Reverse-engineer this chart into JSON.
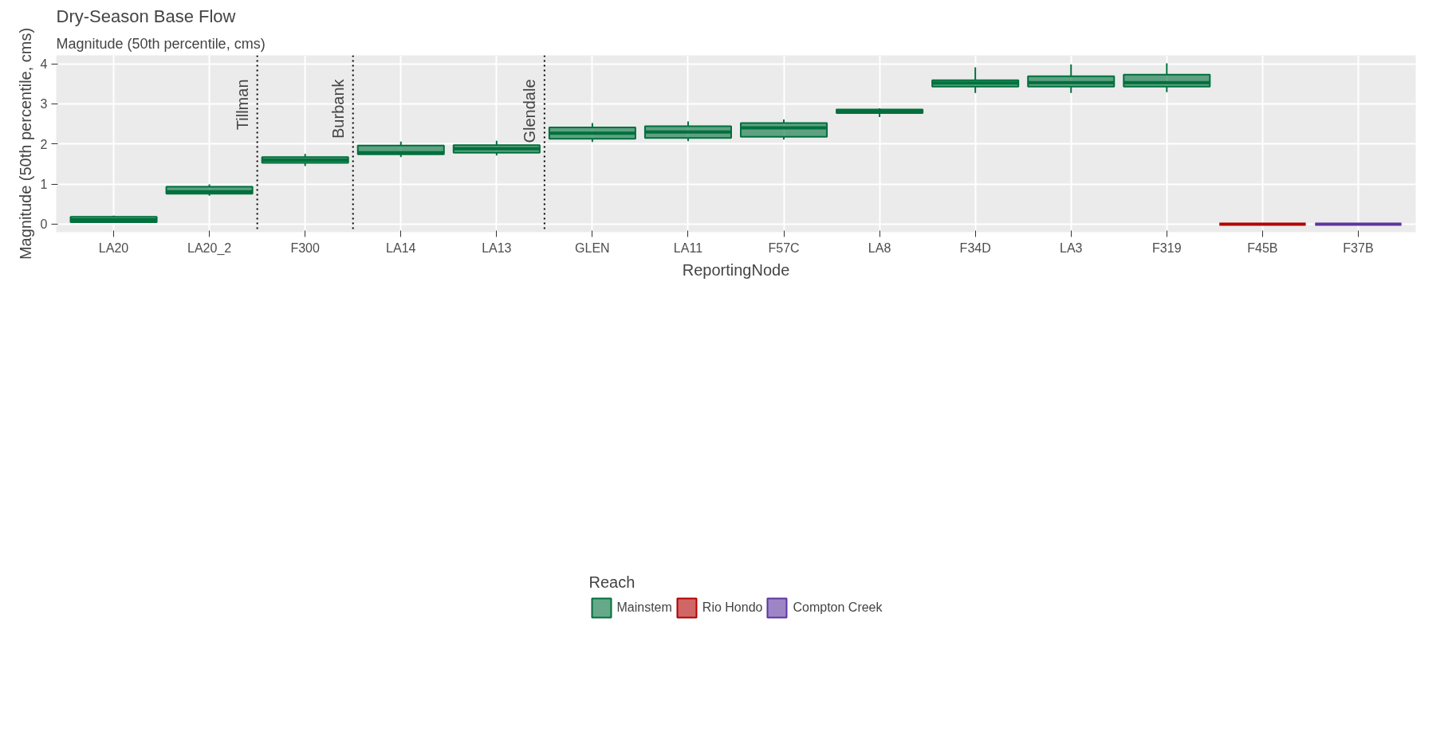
{
  "chart_data": {
    "type": "box",
    "title": "Dry-Season Base Flow",
    "subtitle": "Magnitude (50th percentile, cms)",
    "xlabel": "ReportingNode",
    "ylabel": "Magnitude (50th percentile, cms)",
    "legend_title": "Reach",
    "categories": [
      "LA20",
      "LA20_2",
      "F300",
      "LA14",
      "LA13",
      "GLEN",
      "LA11",
      "F57C",
      "LA8",
      "F34D",
      "LA3",
      "F319",
      "F45B",
      "F37B"
    ],
    "series": [
      {
        "name": "Mainstem",
        "color": "#00703c",
        "boxes": [
          {
            "low": 0.03,
            "q1": 0.05,
            "median": 0.11,
            "q3": 0.18,
            "high": 0.21
          },
          {
            "low": 0.71,
            "q1": 0.76,
            "median": 0.81,
            "q3": 0.93,
            "high": 0.99
          },
          {
            "low": 1.45,
            "q1": 1.53,
            "median": 1.6,
            "q3": 1.67,
            "high": 1.75
          },
          {
            "low": 1.67,
            "q1": 1.74,
            "median": 1.78,
            "q3": 1.96,
            "high": 2.06
          },
          {
            "low": 1.71,
            "q1": 1.78,
            "median": 1.88,
            "q3": 1.97,
            "high": 2.08
          },
          {
            "low": 2.05,
            "q1": 2.13,
            "median": 2.27,
            "q3": 2.41,
            "high": 2.52
          },
          {
            "low": 2.07,
            "q1": 2.15,
            "median": 2.3,
            "q3": 2.44,
            "high": 2.56
          },
          {
            "low": 2.11,
            "q1": 2.18,
            "median": 2.4,
            "q3": 2.52,
            "high": 2.61
          },
          {
            "low": 2.67,
            "q1": 2.77,
            "median": 2.82,
            "q3": 2.86,
            "high": 2.89
          },
          {
            "low": 3.27,
            "q1": 3.43,
            "median": 3.52,
            "q3": 3.59,
            "high": 3.91
          },
          {
            "low": 3.27,
            "q1": 3.43,
            "median": 3.53,
            "q3": 3.69,
            "high": 3.98
          },
          {
            "low": 3.29,
            "q1": 3.43,
            "median": 3.53,
            "q3": 3.73,
            "high": 4.01
          },
          null,
          null
        ]
      },
      {
        "name": "Rio Hondo",
        "color": "#b30000",
        "boxes": [
          null,
          null,
          null,
          null,
          null,
          null,
          null,
          null,
          null,
          null,
          null,
          null,
          {
            "low": 0,
            "q1": 0,
            "median": 0,
            "q3": 0,
            "high": 0
          },
          null
        ]
      },
      {
        "name": "Compton Creek",
        "color": "#5e35a0",
        "boxes": [
          null,
          null,
          null,
          null,
          null,
          null,
          null,
          null,
          null,
          null,
          null,
          null,
          null,
          {
            "low": 0,
            "q1": 0,
            "median": 0,
            "q3": 0,
            "high": 0
          }
        ]
      }
    ],
    "annotations": [
      "Tillman",
      "Burbank",
      "Glendale"
    ],
    "ylim": [
      -0.2,
      4.21
    ],
    "yticks": [
      0,
      1,
      2,
      3,
      4
    ],
    "grid": true,
    "legend": "bottom"
  }
}
